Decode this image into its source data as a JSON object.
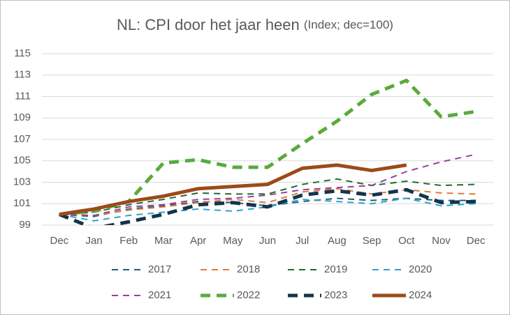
{
  "chart_data": {
    "type": "line",
    "title": "NL: CPI door het jaar heen",
    "subtitle": "(Index; dec=100)",
    "categories": [
      "Dec",
      "Jan",
      "Feb",
      "Mar",
      "Apr",
      "May",
      "Jun",
      "Jul",
      "Aug",
      "Sep",
      "Oct",
      "Nov",
      "Dec"
    ],
    "ylim": [
      99,
      115
    ],
    "yticks": [
      99,
      101,
      103,
      105,
      107,
      109,
      111,
      113,
      115
    ],
    "grid": true,
    "legend": "bottom",
    "series": [
      {
        "name": "2017",
        "color": "#1f5f7a",
        "line_style": "dashed",
        "weight": "normal",
        "values": [
          100,
          99.8,
          100.5,
          100.8,
          101.2,
          101.1,
          100.8,
          101.2,
          101.5,
          101.3,
          101.5,
          101.3,
          101.3
        ]
      },
      {
        "name": "2018",
        "color": "#e07b39",
        "line_style": "dashed",
        "weight": "normal",
        "values": [
          100,
          99.9,
          100.4,
          100.7,
          101.1,
          101.4,
          101.1,
          102.1,
          102.4,
          101.9,
          102.3,
          102.0,
          101.9
        ]
      },
      {
        "name": "2019",
        "color": "#1e6b2e",
        "line_style": "dashed",
        "weight": "normal",
        "values": [
          100,
          100.2,
          100.9,
          101.4,
          102.0,
          101.9,
          101.9,
          102.8,
          103.3,
          102.7,
          103.1,
          102.7,
          102.8
        ]
      },
      {
        "name": "2020",
        "color": "#2ea3c9",
        "line_style": "dashed",
        "weight": "normal",
        "values": [
          100,
          99.4,
          99.9,
          100.2,
          100.5,
          100.3,
          100.7,
          101.4,
          101.2,
          101.0,
          101.5,
          100.8,
          101.0
        ]
      },
      {
        "name": "2021",
        "color": "#9b3f9b",
        "line_style": "dashed",
        "weight": "normal",
        "values": [
          100,
          99.9,
          100.7,
          100.9,
          101.4,
          101.5,
          101.8,
          102.3,
          102.5,
          102.7,
          104.0,
          104.9,
          105.6
        ]
      },
      {
        "name": "2022",
        "color": "#5aaa3c",
        "line_style": "dashed",
        "weight": "bold",
        "values": [
          100,
          100.3,
          101.2,
          104.8,
          105.1,
          104.4,
          104.4,
          106.6,
          108.7,
          111.2,
          112.5,
          109.1,
          109.6
        ]
      },
      {
        "name": "2023",
        "color": "#13354d",
        "line_style": "dashed",
        "weight": "bold",
        "values": [
          100,
          98.7,
          99.3,
          100.0,
          100.9,
          101.1,
          100.7,
          101.8,
          102.2,
          101.8,
          102.3,
          101.1,
          101.2
        ]
      },
      {
        "name": "2024",
        "color": "#9c4a1a",
        "line_style": "solid",
        "weight": "bold",
        "values": [
          100,
          100.5,
          101.2,
          101.7,
          102.4,
          102.6,
          102.8,
          104.3,
          104.6,
          104.1,
          104.6,
          null,
          null
        ]
      }
    ]
  }
}
